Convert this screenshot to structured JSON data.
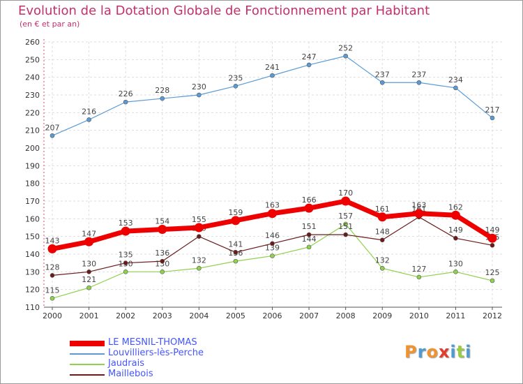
{
  "header": {
    "title": "Evolution de la Dotation Globale de Fonctionnement par Habitant",
    "subtitle": "(en € et par an)"
  },
  "brand": {
    "text": "Proxiti",
    "colors": [
      "#f0932f",
      "#4f9ad3",
      "#f0932f",
      "#e23c2c",
      "#4f9ad3",
      "#9acd44",
      "#4f9ad3"
    ]
  },
  "chart_data": {
    "type": "line",
    "title": "Evolution de la Dotation Globale de Fonctionnement par Habitant",
    "subtitle": "(en € et par an)",
    "xlabel": "",
    "ylabel": "",
    "ylim": [
      110,
      260
    ],
    "yticks": [
      110,
      120,
      130,
      140,
      150,
      160,
      170,
      180,
      190,
      200,
      210,
      220,
      230,
      240,
      250,
      260
    ],
    "categories": [
      "2000",
      "2001",
      "2002",
      "2003",
      "2004",
      "2005",
      "2006",
      "2007",
      "2008",
      "2009",
      "2010",
      "2011",
      "2012"
    ],
    "grid": true,
    "legend_position": "bottom-left",
    "series": [
      {
        "name": "LE MESNIL-THOMAS",
        "color": "#ee0000",
        "values": [
          143,
          147,
          153,
          154,
          155,
          159,
          163,
          166,
          170,
          161,
          163,
          162,
          149
        ]
      },
      {
        "name": "Louvilliers-lès-Perche",
        "color": "#5b9bd5",
        "values": [
          207,
          216,
          226,
          228,
          230,
          235,
          241,
          247,
          252,
          237,
          237,
          234,
          217
        ]
      },
      {
        "name": "Jaudrais",
        "color": "#8fd14f",
        "values": [
          115,
          121,
          130,
          130,
          132,
          136,
          139,
          144,
          157,
          132,
          127,
          130,
          125
        ]
      },
      {
        "name": "Maillebois",
        "color": "#6b1a1a",
        "values": [
          128,
          130,
          135,
          136,
          150,
          141,
          146,
          151,
          151,
          148,
          161,
          149,
          145
        ]
      }
    ]
  }
}
